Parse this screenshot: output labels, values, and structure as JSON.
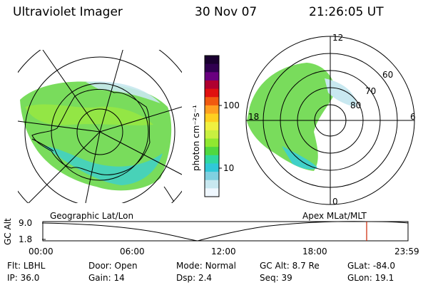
{
  "header": {
    "title": "Ultraviolet Imager",
    "date": "30 Nov 07",
    "time": "21:26:05 UT"
  },
  "colorbar": {
    "unit_label": "photon cm⁻²s⁻¹",
    "ticks": [
      "100",
      "10"
    ],
    "colors": [
      "#1a0030",
      "#300050",
      "#6a0080",
      "#b00030",
      "#e01010",
      "#f05a10",
      "#ffa020",
      "#ffd020",
      "#f0f040",
      "#c8f040",
      "#90e830",
      "#50d840",
      "#30d8a0",
      "#30c8d8",
      "#80d0e0",
      "#c8e8f0",
      "#f0f8ff"
    ]
  },
  "geo_map": {
    "label": "Geographic Lat/Lon"
  },
  "apex_map": {
    "label": "Apex MLat/MLT",
    "mlt_labels": {
      "top": "12",
      "left": "18",
      "right": "6",
      "bottom": "0"
    },
    "lat_labels": [
      "60",
      "70",
      "80"
    ]
  },
  "altitude_plot": {
    "axis_title": "GC Alt",
    "y_ticks": [
      "9.0",
      "1.8"
    ],
    "x_ticks": [
      "00:00",
      "06:00",
      "12:00",
      "18:00",
      "23:59"
    ],
    "current_time_hours": 21.43,
    "series_color": "#000000",
    "marker_color": "#cc2200"
  },
  "status": {
    "row1": [
      {
        "label": "Flt:",
        "value": "LBHL"
      },
      {
        "label": "Door:",
        "value": "Open"
      },
      {
        "label": "Mode:",
        "value": "Normal"
      },
      {
        "label": "GC Alt:",
        "value": "8.7 Re"
      },
      {
        "label": "GLat:",
        "value": "-84.0"
      }
    ],
    "row2": [
      {
        "label": "IP:",
        "value": "36.0"
      },
      {
        "label": "Gain:",
        "value": "14"
      },
      {
        "label": "Dsp:",
        "value": "2.4"
      },
      {
        "label": "Seq:",
        "value": "39"
      },
      {
        "label": "GLon:",
        "value": "19.1"
      }
    ]
  }
}
